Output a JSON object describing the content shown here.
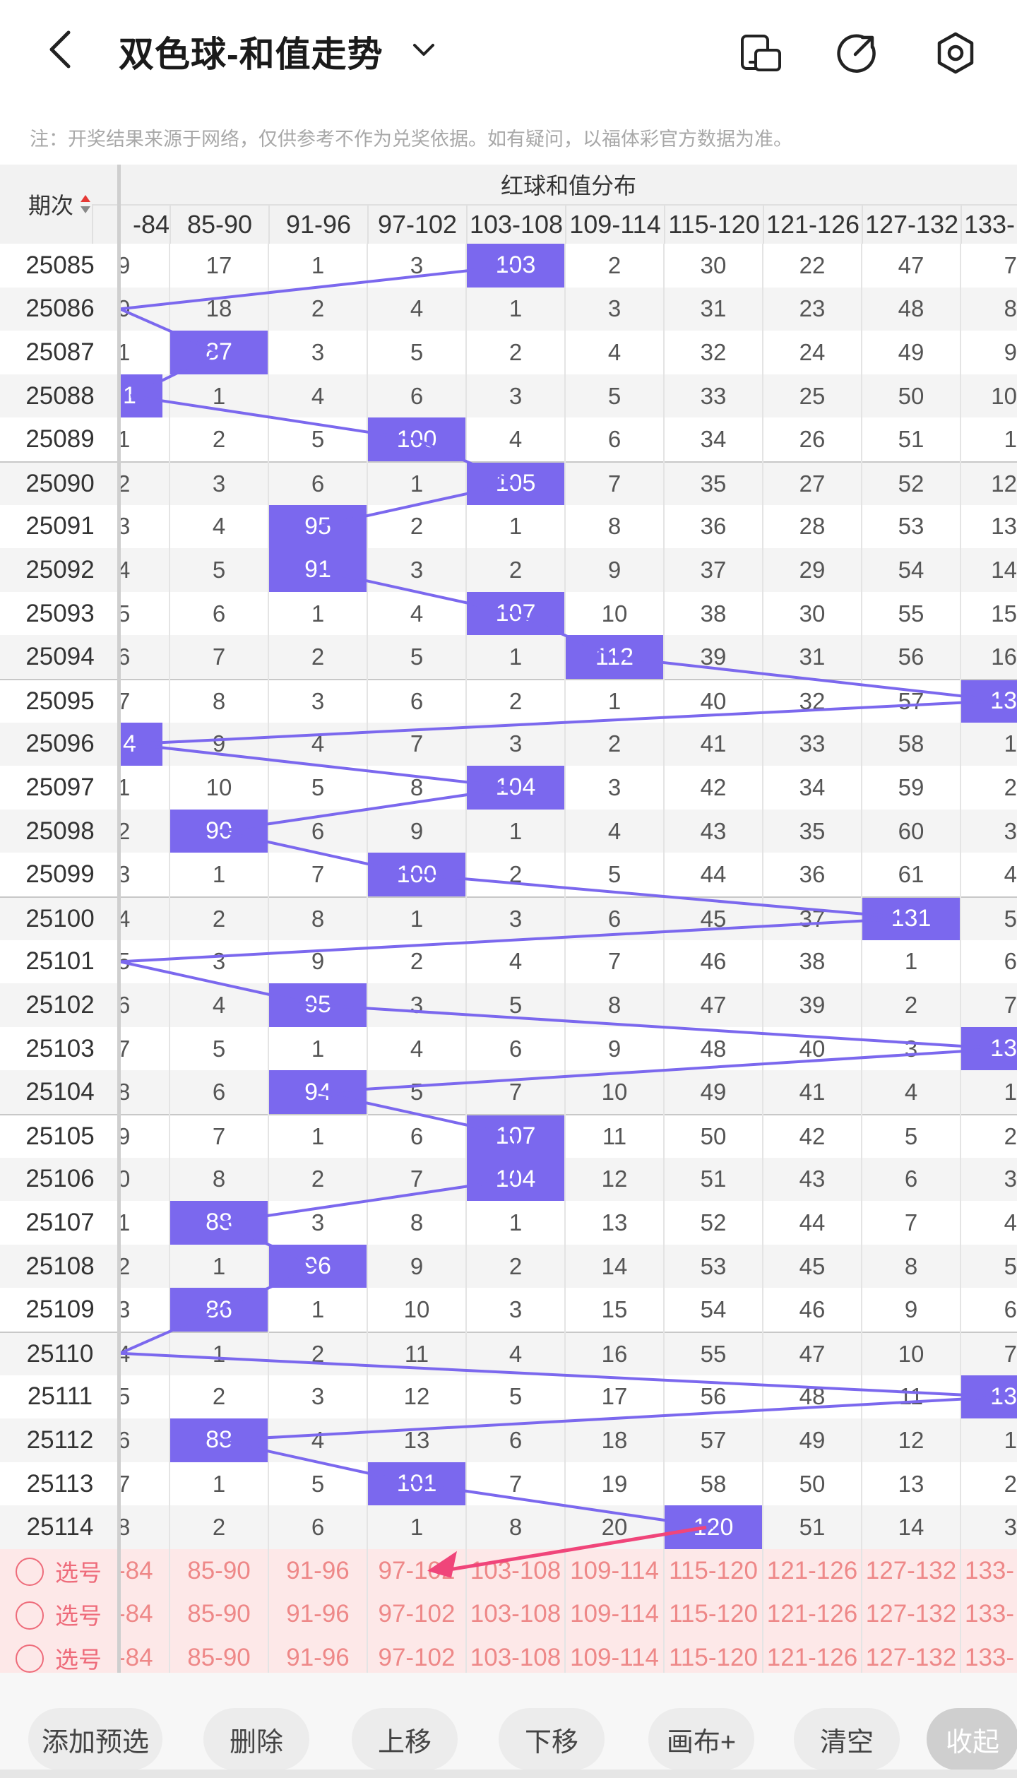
{
  "header": {
    "title": "双色球-和值走势",
    "icons": [
      "back-arrow-icon",
      "chevron-down-icon",
      "device-icon",
      "share-icon",
      "settings-icon"
    ]
  },
  "notice": "注：开奖结果来源于网络，仅供参考不作为兑奖依据。如有疑问，以福体彩官方数据为准。",
  "table": {
    "period_header": "期次",
    "group_header": "红球和值分布",
    "ranges": [
      "-84",
      "85-90",
      "91-96",
      "97-102",
      "103-108",
      "109-114",
      "115-120",
      "121-126",
      "127-132",
      "133-"
    ],
    "rows": [
      {
        "period": "25085",
        "cells": [
          "9",
          "17",
          "1",
          "3",
          "103",
          "2",
          "30",
          "22",
          "47",
          "7"
        ],
        "hit": 4
      },
      {
        "period": "25086",
        "cells": [
          "0",
          "18",
          "2",
          "4",
          "1",
          "3",
          "31",
          "23",
          "48",
          "8"
        ],
        "hit": -1
      },
      {
        "period": "25087",
        "cells": [
          "1",
          "87",
          "3",
          "5",
          "2",
          "4",
          "32",
          "24",
          "49",
          "9"
        ],
        "hit": 1
      },
      {
        "period": "25088",
        "cells": [
          "1",
          "1",
          "4",
          "6",
          "3",
          "5",
          "33",
          "25",
          "50",
          "10"
        ],
        "hit": 0
      },
      {
        "period": "25089",
        "cells": [
          "1",
          "2",
          "5",
          "100",
          "4",
          "6",
          "34",
          "26",
          "51",
          "1"
        ],
        "hit": 3
      },
      {
        "period": "25090",
        "cells": [
          "2",
          "3",
          "6",
          "1",
          "105",
          "7",
          "35",
          "27",
          "52",
          "12"
        ],
        "hit": 4
      },
      {
        "period": "25091",
        "cells": [
          "3",
          "4",
          "95",
          "2",
          "1",
          "8",
          "36",
          "28",
          "53",
          "13"
        ],
        "hit": 2
      },
      {
        "period": "25092",
        "cells": [
          "4",
          "5",
          "91",
          "3",
          "2",
          "9",
          "37",
          "29",
          "54",
          "14"
        ],
        "hit": 2
      },
      {
        "period": "25093",
        "cells": [
          "5",
          "6",
          "1",
          "4",
          "107",
          "10",
          "38",
          "30",
          "55",
          "15"
        ],
        "hit": 4
      },
      {
        "period": "25094",
        "cells": [
          "6",
          "7",
          "2",
          "5",
          "1",
          "112",
          "39",
          "31",
          "56",
          "16"
        ],
        "hit": 5
      },
      {
        "period": "25095",
        "cells": [
          "7",
          "8",
          "3",
          "6",
          "2",
          "1",
          "40",
          "32",
          "57",
          "13"
        ],
        "hit": 9
      },
      {
        "period": "25096",
        "cells": [
          "4",
          "9",
          "4",
          "7",
          "3",
          "2",
          "41",
          "33",
          "58",
          "1"
        ],
        "hit": 0
      },
      {
        "period": "25097",
        "cells": [
          "1",
          "10",
          "5",
          "8",
          "104",
          "3",
          "42",
          "34",
          "59",
          "2"
        ],
        "hit": 4
      },
      {
        "period": "25098",
        "cells": [
          "2",
          "90",
          "6",
          "9",
          "1",
          "4",
          "43",
          "35",
          "60",
          "3"
        ],
        "hit": 1
      },
      {
        "period": "25099",
        "cells": [
          "3",
          "1",
          "7",
          "100",
          "2",
          "5",
          "44",
          "36",
          "61",
          "4"
        ],
        "hit": 3
      },
      {
        "period": "25100",
        "cells": [
          "4",
          "2",
          "8",
          "1",
          "3",
          "6",
          "45",
          "37",
          "131",
          "5"
        ],
        "hit": 8
      },
      {
        "period": "25101",
        "cells": [
          "5",
          "3",
          "9",
          "2",
          "4",
          "7",
          "46",
          "38",
          "1",
          "6"
        ],
        "hit": -1
      },
      {
        "period": "25102",
        "cells": [
          "6",
          "4",
          "95",
          "3",
          "5",
          "8",
          "47",
          "39",
          "2",
          "7"
        ],
        "hit": 2
      },
      {
        "period": "25103",
        "cells": [
          "7",
          "5",
          "1",
          "4",
          "6",
          "9",
          "48",
          "40",
          "3",
          "13"
        ],
        "hit": 9
      },
      {
        "period": "25104",
        "cells": [
          "8",
          "6",
          "94",
          "5",
          "7",
          "10",
          "49",
          "41",
          "4",
          "1"
        ],
        "hit": 2
      },
      {
        "period": "25105",
        "cells": [
          "9",
          "7",
          "1",
          "6",
          "107",
          "11",
          "50",
          "42",
          "5",
          "2"
        ],
        "hit": 4
      },
      {
        "period": "25106",
        "cells": [
          "0",
          "8",
          "2",
          "7",
          "104",
          "12",
          "51",
          "43",
          "6",
          "3"
        ],
        "hit": 4
      },
      {
        "period": "25107",
        "cells": [
          "1",
          "88",
          "3",
          "8",
          "1",
          "13",
          "52",
          "44",
          "7",
          "4"
        ],
        "hit": 1
      },
      {
        "period": "25108",
        "cells": [
          "2",
          "1",
          "96",
          "9",
          "2",
          "14",
          "53",
          "45",
          "8",
          "5"
        ],
        "hit": 2
      },
      {
        "period": "25109",
        "cells": [
          "3",
          "86",
          "1",
          "10",
          "3",
          "15",
          "54",
          "46",
          "9",
          "6"
        ],
        "hit": 1
      },
      {
        "period": "25110",
        "cells": [
          "4",
          "1",
          "2",
          "11",
          "4",
          "16",
          "55",
          "47",
          "10",
          "7"
        ],
        "hit": -1
      },
      {
        "period": "25111",
        "cells": [
          "5",
          "2",
          "3",
          "12",
          "5",
          "17",
          "56",
          "48",
          "11",
          "13"
        ],
        "hit": 9
      },
      {
        "period": "25112",
        "cells": [
          "6",
          "88",
          "4",
          "13",
          "6",
          "18",
          "57",
          "49",
          "12",
          "1"
        ],
        "hit": 1
      },
      {
        "period": "25113",
        "cells": [
          "7",
          "1",
          "5",
          "101",
          "7",
          "19",
          "58",
          "50",
          "13",
          "2"
        ],
        "hit": 3
      },
      {
        "period": "25114",
        "cells": [
          "8",
          "2",
          "6",
          "1",
          "8",
          "20",
          "120",
          "51",
          "14",
          "3"
        ],
        "hit": 6
      }
    ],
    "selection_rows": [
      {
        "label": "选号",
        "cells": [
          "-84",
          "85-90",
          "91-96",
          "97-102",
          "103-108",
          "109-114",
          "115-120",
          "121-126",
          "127-132",
          "133-"
        ]
      },
      {
        "label": "选号",
        "cells": [
          "-84",
          "85-90",
          "91-96",
          "97-102",
          "103-108",
          "109-114",
          "115-120",
          "121-126",
          "127-132",
          "133-"
        ]
      },
      {
        "label": "选号",
        "cells": [
          "-84",
          "85-90",
          "91-96",
          "97-102",
          "103-108",
          "109-114",
          "115-120",
          "121-126",
          "127-132",
          "133-"
        ]
      }
    ]
  },
  "toolbar": {
    "buttons": [
      "添加预选",
      "删除",
      "上移",
      "下移",
      "画布+",
      "清空",
      "收起"
    ]
  },
  "colors": {
    "accent": "#7b68ee",
    "selection_bg": "#fde8e8",
    "selection_text": "#ee6b7a",
    "arrow": "#f0457a"
  }
}
